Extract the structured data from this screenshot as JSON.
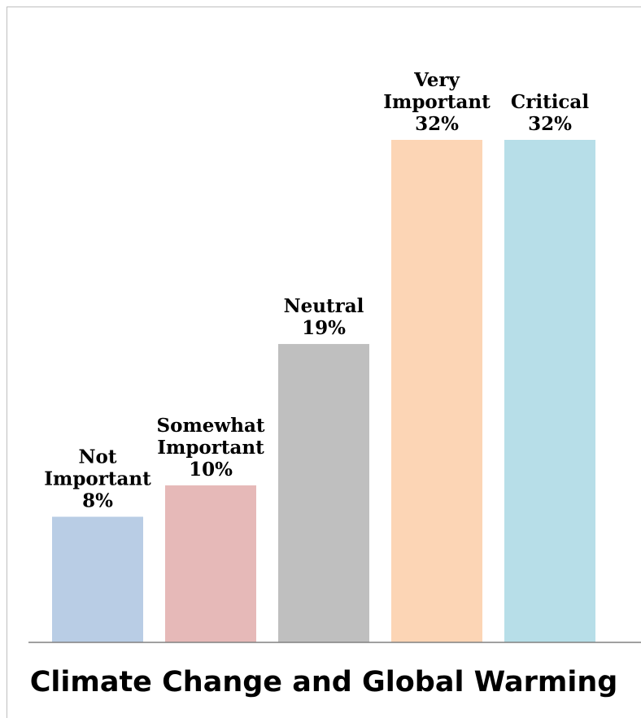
{
  "chart_data": {
    "type": "bar",
    "title": "Climate Change and Global Warming",
    "categories": [
      "Not Important",
      "Somewhat Important",
      "Neutral",
      "Very Important",
      "Critical"
    ],
    "label_lines": [
      [
        "Not",
        "Important",
        "8%"
      ],
      [
        "Somewhat",
        "Important",
        "10%"
      ],
      [
        "Neutral",
        "19%"
      ],
      [
        "Very",
        "Important",
        "32%"
      ],
      [
        "Critical",
        "32%"
      ]
    ],
    "values": [
      8,
      10,
      19,
      32,
      32
    ],
    "value_unit": "%",
    "colors": [
      "#b9cde5",
      "#e6b9b8",
      "#bfbfbf",
      "#fcd5b5",
      "#b7dee8"
    ],
    "axis_line_color": "#808080",
    "ylim": [
      0,
      32
    ],
    "grid": false,
    "legend": "none"
  }
}
